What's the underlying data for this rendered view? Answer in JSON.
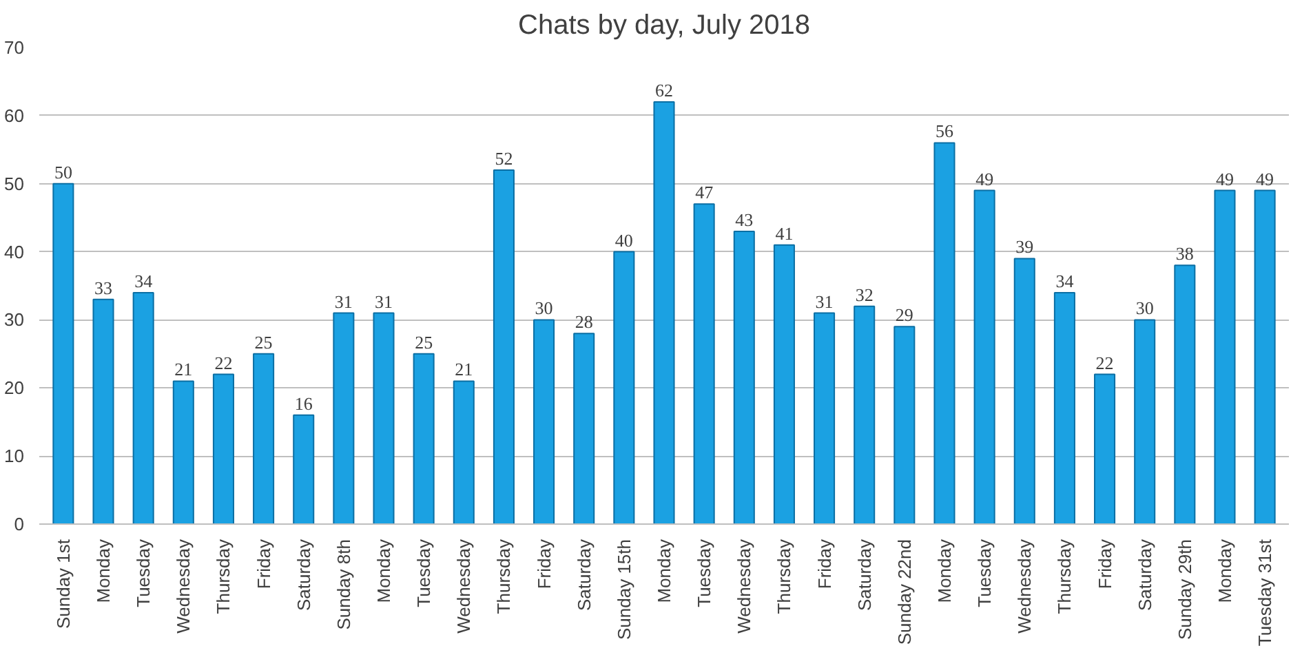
{
  "chart_data": {
    "type": "bar",
    "title": "Chats by day, July 2018",
    "categories": [
      "Sunday 1st",
      "Monday",
      "Tuesday",
      "Wednesday",
      "Thursday",
      "Friday",
      "Saturday",
      "Sunday 8th",
      "Monday",
      "Tuesday",
      "Wednesday",
      "Thursday",
      "Friday",
      "Saturday",
      "Sunday 15th",
      "Monday",
      "Tuesday",
      "Wednesday",
      "Thursday",
      "Friday",
      "Saturday",
      "Sunday 22nd",
      "Monday",
      "Tuesday",
      "Wednesday",
      "Thursday",
      "Friday",
      "Saturday",
      "Sunday 29th",
      "Monday",
      "Tuesday 31st"
    ],
    "values": [
      50,
      33,
      34,
      21,
      22,
      25,
      16,
      31,
      31,
      25,
      21,
      52,
      30,
      28,
      40,
      62,
      47,
      43,
      41,
      31,
      32,
      29,
      56,
      49,
      39,
      34,
      22,
      30,
      38,
      49,
      49
    ],
    "color": "#1ba1e2",
    "ylim": [
      0,
      70
    ],
    "yticks": [
      0,
      10,
      20,
      30,
      40,
      50,
      60,
      70
    ],
    "grid": "y",
    "data_labels": true
  }
}
